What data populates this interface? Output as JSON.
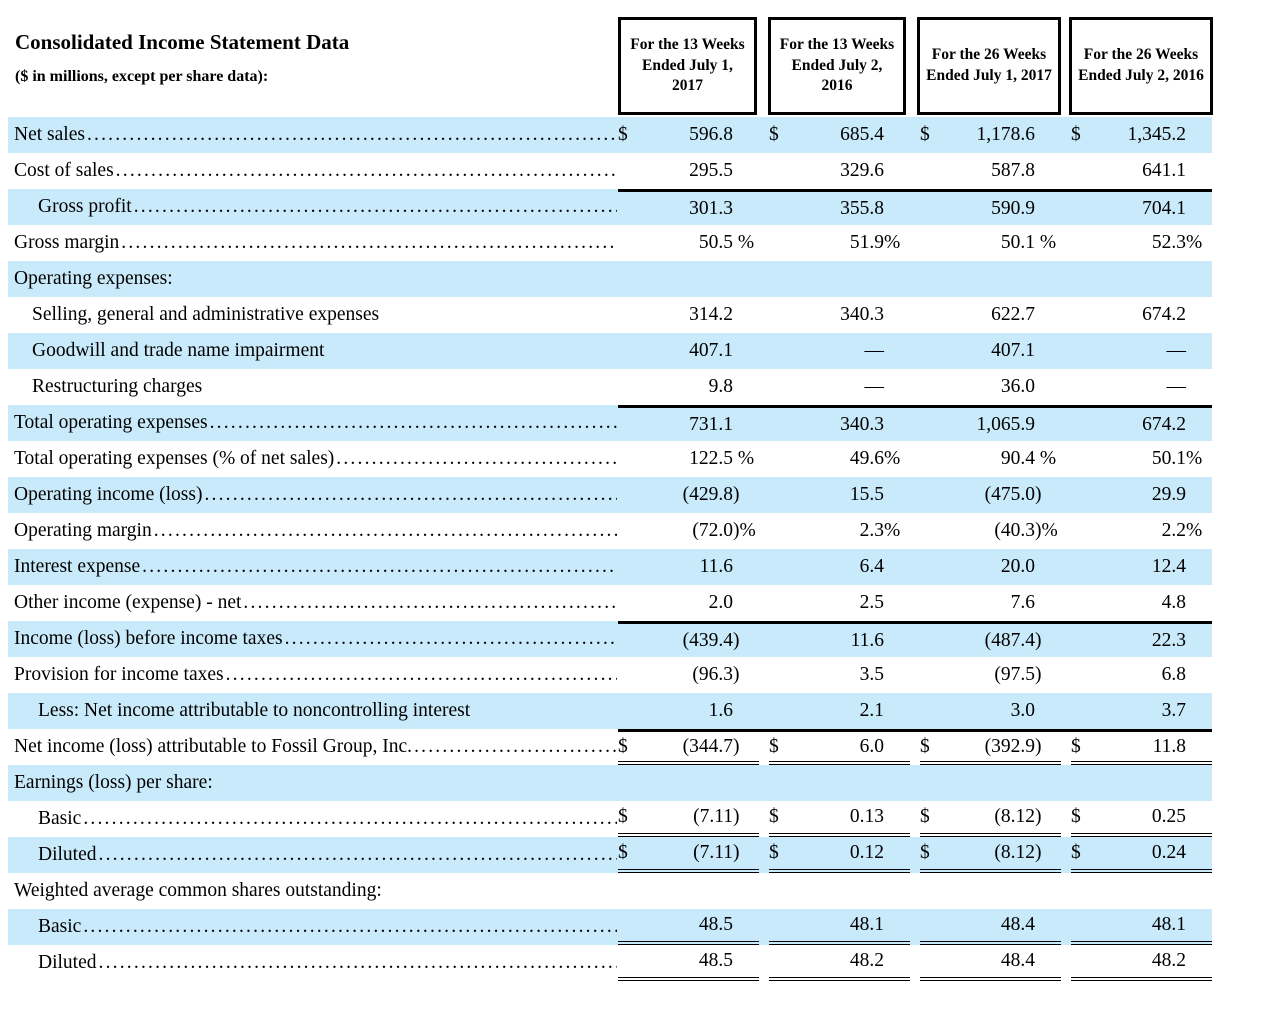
{
  "title": "Consolidated Income Statement Data",
  "subtitle": "($ in millions, except per share data):",
  "symbols": {
    "dollar": "$"
  },
  "colors": {
    "row_highlight": "#C9EAFB",
    "rule": "#000000",
    "text": "#000000",
    "background": "#FFFFFF"
  },
  "columns": [
    {
      "label": "For the 13 Weeks Ended July 1, 2017"
    },
    {
      "label": "For the 13 Weeks Ended July 2, 2016"
    },
    {
      "label": "For the 26 Weeks Ended July 1, 2017"
    },
    {
      "label": "For the 26 Weeks Ended July 2, 2016"
    }
  ],
  "rows": [
    {
      "label": "Net sales",
      "indent": 0,
      "shaded": true,
      "leaders": true,
      "dollar": true,
      "values": [
        {
          "m": "596.8",
          "s": ""
        },
        {
          "m": "685.4",
          "s": ""
        },
        {
          "m": "1,178.6",
          "s": ""
        },
        {
          "m": "1,345.2",
          "s": ""
        }
      ]
    },
    {
      "label": "Cost of sales",
      "indent": 0,
      "shaded": false,
      "leaders": true,
      "values": [
        {
          "m": "295.5",
          "s": ""
        },
        {
          "m": "329.6",
          "s": ""
        },
        {
          "m": "587.8",
          "s": ""
        },
        {
          "m": "641.1",
          "s": ""
        }
      ]
    },
    {
      "label": "Gross profit",
      "indent": 2,
      "shaded": true,
      "leaders": true,
      "rule_above": true,
      "values": [
        {
          "m": "301.3",
          "s": ""
        },
        {
          "m": "355.8",
          "s": ""
        },
        {
          "m": "590.9",
          "s": ""
        },
        {
          "m": "704.1",
          "s": ""
        }
      ]
    },
    {
      "label": "Gross margin",
      "indent": 0,
      "shaded": false,
      "leaders": true,
      "values": [
        {
          "m": "50.5",
          "s": " %"
        },
        {
          "m": "51.9",
          "s": "%"
        },
        {
          "m": "50.1",
          "s": " %"
        },
        {
          "m": "52.3",
          "s": "%"
        }
      ]
    },
    {
      "label": "Operating expenses:",
      "indent": 0,
      "shaded": true,
      "leaders": false,
      "values": []
    },
    {
      "label": "Selling, general and administrative expenses",
      "indent": 1,
      "shaded": false,
      "leaders": false,
      "values": [
        {
          "m": "314.2",
          "s": ""
        },
        {
          "m": "340.3",
          "s": ""
        },
        {
          "m": "622.7",
          "s": ""
        },
        {
          "m": "674.2",
          "s": ""
        }
      ]
    },
    {
      "label": "Goodwill and trade name impairment",
      "indent": 1,
      "shaded": true,
      "leaders": false,
      "values": [
        {
          "m": "407.1",
          "s": ""
        },
        {
          "m": "—",
          "s": ""
        },
        {
          "m": "407.1",
          "s": ""
        },
        {
          "m": "—",
          "s": ""
        }
      ]
    },
    {
      "label": "Restructuring charges",
      "indent": 1,
      "shaded": false,
      "leaders": false,
      "values": [
        {
          "m": "9.8",
          "s": ""
        },
        {
          "m": "—",
          "s": ""
        },
        {
          "m": "36.0",
          "s": ""
        },
        {
          "m": "—",
          "s": ""
        }
      ]
    },
    {
      "label": "Total operating expenses",
      "indent": 0,
      "shaded": true,
      "leaders": true,
      "rule_above": true,
      "values": [
        {
          "m": "731.1",
          "s": ""
        },
        {
          "m": "340.3",
          "s": ""
        },
        {
          "m": "1,065.9",
          "s": ""
        },
        {
          "m": "674.2",
          "s": ""
        }
      ]
    },
    {
      "label": "Total operating expenses (% of net sales)",
      "indent": 0,
      "shaded": false,
      "leaders": true,
      "values": [
        {
          "m": "122.5",
          "s": " %"
        },
        {
          "m": "49.6",
          "s": "%"
        },
        {
          "m": "90.4",
          "s": " %"
        },
        {
          "m": "50.1",
          "s": "%"
        }
      ]
    },
    {
      "label": "Operating income (loss)",
      "indent": 0,
      "shaded": true,
      "leaders": true,
      "values": [
        {
          "m": "(429.8",
          "s": ")"
        },
        {
          "m": "15.5",
          "s": ""
        },
        {
          "m": "(475.0",
          "s": ")"
        },
        {
          "m": "29.9",
          "s": ""
        }
      ]
    },
    {
      "label": "Operating margin",
      "indent": 0,
      "shaded": false,
      "leaders": true,
      "values": [
        {
          "m": "(72.0",
          "s": ")%"
        },
        {
          "m": "2.3",
          "s": "%"
        },
        {
          "m": "(40.3",
          "s": ")%"
        },
        {
          "m": "2.2",
          "s": "%"
        }
      ]
    },
    {
      "label": "Interest expense",
      "indent": 0,
      "shaded": true,
      "leaders": true,
      "values": [
        {
          "m": "11.6",
          "s": ""
        },
        {
          "m": "6.4",
          "s": ""
        },
        {
          "m": "20.0",
          "s": ""
        },
        {
          "m": "12.4",
          "s": ""
        }
      ]
    },
    {
      "label": "Other income (expense) - net",
      "indent": 0,
      "shaded": false,
      "leaders": true,
      "values": [
        {
          "m": "2.0",
          "s": ""
        },
        {
          "m": "2.5",
          "s": ""
        },
        {
          "m": "7.6",
          "s": ""
        },
        {
          "m": "4.8",
          "s": ""
        }
      ]
    },
    {
      "label": "Income (loss) before income taxes",
      "indent": 0,
      "shaded": true,
      "leaders": true,
      "rule_above": true,
      "values": [
        {
          "m": "(439.4",
          "s": ")"
        },
        {
          "m": "11.6",
          "s": ""
        },
        {
          "m": "(487.4",
          "s": ")"
        },
        {
          "m": "22.3",
          "s": ""
        }
      ]
    },
    {
      "label": "Provision for income taxes",
      "indent": 0,
      "shaded": false,
      "leaders": true,
      "values": [
        {
          "m": "(96.3",
          "s": ")"
        },
        {
          "m": "3.5",
          "s": ""
        },
        {
          "m": "(97.5",
          "s": ")"
        },
        {
          "m": "6.8",
          "s": ""
        }
      ]
    },
    {
      "label": "Less: Net income attributable to noncontrolling interest",
      "indent": 2,
      "shaded": true,
      "leaders": false,
      "values": [
        {
          "m": "1.6",
          "s": ""
        },
        {
          "m": "2.1",
          "s": ""
        },
        {
          "m": "3.0",
          "s": ""
        },
        {
          "m": "3.7",
          "s": ""
        }
      ]
    },
    {
      "label": "Net income (loss) attributable to Fossil Group, Inc.",
      "indent": 0,
      "shaded": false,
      "leaders": true,
      "dollar": true,
      "rule_above": true,
      "underline": true,
      "values": [
        {
          "m": "(344.7",
          "s": ")"
        },
        {
          "m": "6.0",
          "s": ""
        },
        {
          "m": "(392.9",
          "s": ")"
        },
        {
          "m": "11.8",
          "s": ""
        }
      ]
    },
    {
      "label": "Earnings (loss) per share:",
      "indent": 0,
      "shaded": true,
      "leaders": false,
      "values": []
    },
    {
      "label": "Basic",
      "indent": 2,
      "shaded": false,
      "leaders": true,
      "dollar": true,
      "underline": true,
      "values": [
        {
          "m": "(7.11",
          "s": ")"
        },
        {
          "m": "0.13",
          "s": ""
        },
        {
          "m": "(8.12",
          "s": ")"
        },
        {
          "m": "0.25",
          "s": ""
        }
      ]
    },
    {
      "label": "Diluted",
      "indent": 2,
      "shaded": true,
      "leaders": true,
      "dollar": true,
      "underline": true,
      "values": [
        {
          "m": "(7.11",
          "s": ")"
        },
        {
          "m": "0.12",
          "s": ""
        },
        {
          "m": "(8.12",
          "s": ")"
        },
        {
          "m": "0.24",
          "s": ""
        }
      ]
    },
    {
      "label": "Weighted average common shares outstanding:",
      "indent": 0,
      "shaded": false,
      "leaders": false,
      "values": []
    },
    {
      "label": "Basic",
      "indent": 2,
      "shaded": true,
      "leaders": true,
      "underline": true,
      "values": [
        {
          "m": "48.5",
          "s": ""
        },
        {
          "m": "48.1",
          "s": ""
        },
        {
          "m": "48.4",
          "s": ""
        },
        {
          "m": "48.1",
          "s": ""
        }
      ]
    },
    {
      "label": "Diluted",
      "indent": 2,
      "shaded": false,
      "leaders": true,
      "underline": true,
      "values": [
        {
          "m": "48.5",
          "s": ""
        },
        {
          "m": "48.2",
          "s": ""
        },
        {
          "m": "48.4",
          "s": ""
        },
        {
          "m": "48.2",
          "s": ""
        }
      ]
    }
  ]
}
